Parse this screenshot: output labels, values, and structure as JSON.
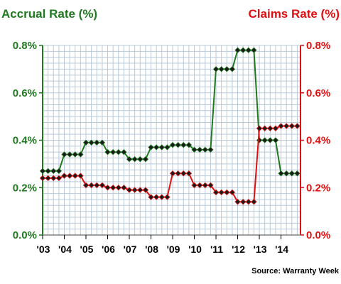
{
  "chart_data": {
    "type": "line",
    "left_axis_title": "Accrual Rate (%)",
    "right_axis_title": "Claims Rate (%)",
    "source": "Source: Warranty Week",
    "y_ticks": [
      "0.0%",
      "0.2%",
      "0.4%",
      "0.6%",
      "0.8%"
    ],
    "y_tick_values": [
      0.0,
      0.2,
      0.4,
      0.6,
      0.8
    ],
    "ylim": [
      0.0,
      0.8
    ],
    "x_tick_labels": [
      "'03",
      "'04",
      "'05",
      "'06",
      "'07",
      "'08",
      "'09",
      "'10",
      "'11",
      "'12",
      "'13",
      "'14"
    ],
    "x_tick_years": [
      2003,
      2004,
      2005,
      2006,
      2007,
      2008,
      2009,
      2010,
      2011,
      2012,
      2013,
      2014
    ],
    "xlim": [
      2003,
      2014.9
    ],
    "grid": true,
    "series": [
      {
        "name": "Accrual Rate (%)",
        "color": "#1f7a1f",
        "x": [
          2003.0,
          2003.25,
          2003.5,
          2003.75,
          2004.0,
          2004.25,
          2004.5,
          2004.75,
          2005.0,
          2005.25,
          2005.5,
          2005.75,
          2006.0,
          2006.25,
          2006.5,
          2006.75,
          2007.0,
          2007.25,
          2007.5,
          2007.75,
          2008.0,
          2008.25,
          2008.5,
          2008.75,
          2009.0,
          2009.25,
          2009.5,
          2009.75,
          2010.0,
          2010.25,
          2010.5,
          2010.75,
          2011.0,
          2011.25,
          2011.5,
          2011.75,
          2012.0,
          2012.25,
          2012.5,
          2012.75,
          2013.0,
          2013.25,
          2013.5,
          2013.75,
          2014.0,
          2014.25,
          2014.5,
          2014.75
        ],
        "values": [
          0.27,
          0.27,
          0.27,
          0.27,
          0.34,
          0.34,
          0.34,
          0.34,
          0.39,
          0.39,
          0.39,
          0.39,
          0.35,
          0.35,
          0.35,
          0.35,
          0.32,
          0.32,
          0.32,
          0.32,
          0.37,
          0.37,
          0.37,
          0.37,
          0.38,
          0.38,
          0.38,
          0.38,
          0.36,
          0.36,
          0.36,
          0.36,
          0.7,
          0.7,
          0.7,
          0.7,
          0.78,
          0.78,
          0.78,
          0.78,
          0.4,
          0.4,
          0.4,
          0.4,
          0.26,
          0.26,
          0.26,
          0.26
        ]
      },
      {
        "name": "Claims Rate (%)",
        "color": "#e01010",
        "x": [
          2003.0,
          2003.25,
          2003.5,
          2003.75,
          2004.0,
          2004.25,
          2004.5,
          2004.75,
          2005.0,
          2005.25,
          2005.5,
          2005.75,
          2006.0,
          2006.25,
          2006.5,
          2006.75,
          2007.0,
          2007.25,
          2007.5,
          2007.75,
          2008.0,
          2008.25,
          2008.5,
          2008.75,
          2009.0,
          2009.25,
          2009.5,
          2009.75,
          2010.0,
          2010.25,
          2010.5,
          2010.75,
          2011.0,
          2011.25,
          2011.5,
          2011.75,
          2012.0,
          2012.25,
          2012.5,
          2012.75,
          2013.0,
          2013.25,
          2013.5,
          2013.75,
          2014.0,
          2014.25,
          2014.5,
          2014.75
        ],
        "values": [
          0.24,
          0.24,
          0.24,
          0.24,
          0.25,
          0.25,
          0.25,
          0.25,
          0.21,
          0.21,
          0.21,
          0.21,
          0.2,
          0.2,
          0.2,
          0.2,
          0.19,
          0.19,
          0.19,
          0.19,
          0.16,
          0.16,
          0.16,
          0.16,
          0.26,
          0.26,
          0.26,
          0.26,
          0.21,
          0.21,
          0.21,
          0.21,
          0.18,
          0.18,
          0.18,
          0.18,
          0.14,
          0.14,
          0.14,
          0.14,
          0.45,
          0.45,
          0.45,
          0.45,
          0.46,
          0.46,
          0.46,
          0.46
        ]
      }
    ]
  }
}
